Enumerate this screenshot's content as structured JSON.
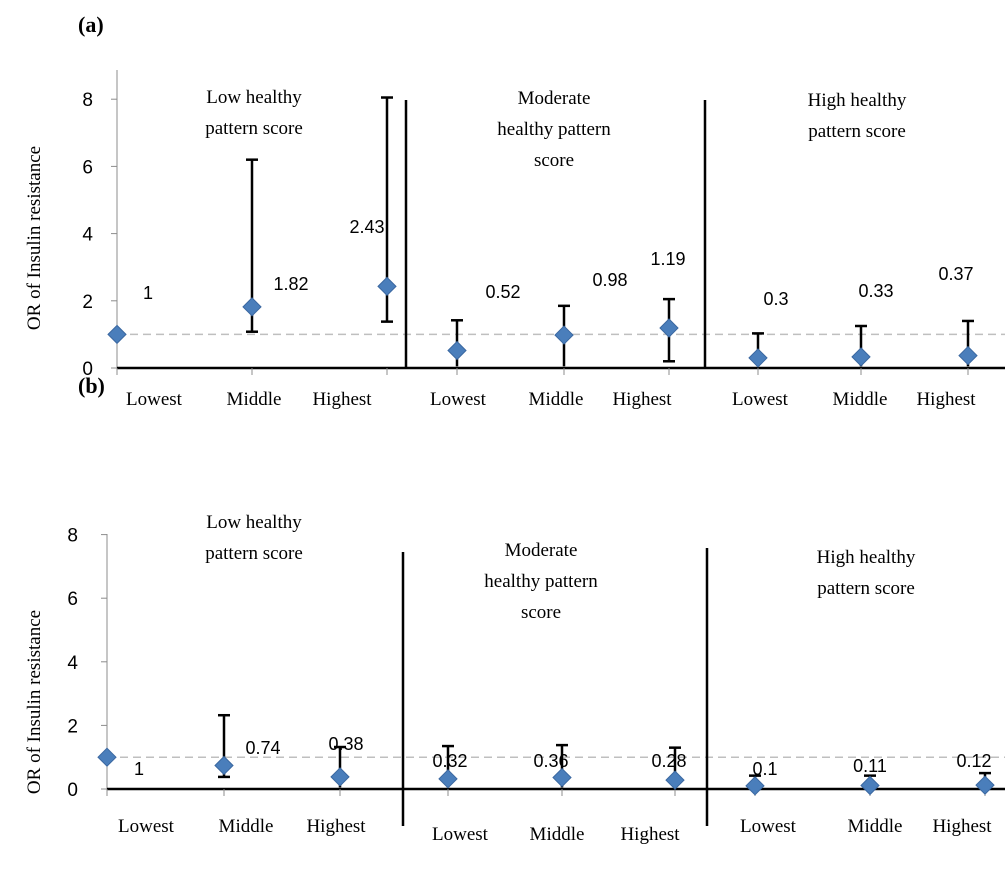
{
  "chart_data": [
    {
      "type": "scatter",
      "panel_label": "(a)",
      "ylabel": "OR of Insulin resistance",
      "ylim": [
        0,
        8
      ],
      "yticks": [
        "0",
        "2",
        "4",
        "6",
        "8"
      ],
      "reference_line": 1,
      "groups": [
        {
          "title_lines": [
            "Low healthy",
            "pattern score"
          ],
          "points": [
            {
              "x": "Lowest",
              "y": 1,
              "label": "1",
              "ci_low": 1,
              "ci_high": 1
            },
            {
              "x": "Middle",
              "y": 1.82,
              "label": "1.82",
              "ci_low": 1.08,
              "ci_high": 6.2
            },
            {
              "x": "Highest",
              "y": 2.43,
              "label": "2.43",
              "ci_low": 1.38,
              "ci_high": 8.05
            }
          ]
        },
        {
          "title_lines": [
            "Moderate",
            "healthy pattern",
            "score"
          ],
          "points": [
            {
              "x": "Lowest",
              "y": 0.52,
              "label": "0.52",
              "ci_low": 0.05,
              "ci_high": 1.42
            },
            {
              "x": "Middle",
              "y": 0.98,
              "label": "0.98",
              "ci_low": 0.05,
              "ci_high": 1.85
            },
            {
              "x": "Highest",
              "y": 1.19,
              "label": "1.19",
              "ci_low": 0.2,
              "ci_high": 2.05
            }
          ]
        },
        {
          "title_lines": [
            "High healthy",
            "pattern score"
          ],
          "points": [
            {
              "x": "Lowest",
              "y": 0.3,
              "label": "0.3",
              "ci_low": 0.05,
              "ci_high": 1.03
            },
            {
              "x": "Middle",
              "y": 0.33,
              "label": "0.33",
              "ci_low": 0.05,
              "ci_high": 1.25
            },
            {
              "x": "Highest",
              "y": 0.37,
              "label": "0.37",
              "ci_low": 0.05,
              "ci_high": 1.4
            }
          ]
        }
      ]
    },
    {
      "type": "scatter",
      "panel_label": "(b)",
      "ylabel": "OR of Insulin resistance",
      "ylim": [
        0,
        8
      ],
      "yticks": [
        "0",
        "2",
        "4",
        "6",
        "8"
      ],
      "reference_line": 1,
      "groups": [
        {
          "title_lines": [
            "Low healthy",
            "pattern score"
          ],
          "points": [
            {
              "x": "Lowest",
              "y": 1,
              "label": "1",
              "ci_low": 1,
              "ci_high": 1
            },
            {
              "x": "Middle",
              "y": 0.74,
              "label": "0.74",
              "ci_low": 0.38,
              "ci_high": 2.32
            },
            {
              "x": "Highest",
              "y": 0.38,
              "label": "0.38",
              "ci_low": 0.05,
              "ci_high": 1.32
            }
          ]
        },
        {
          "title_lines": [
            "Moderate",
            "healthy pattern",
            "score"
          ],
          "points": [
            {
              "x": "Lowest",
              "y": 0.32,
              "label": "0.32",
              "ci_low": 0.05,
              "ci_high": 1.35
            },
            {
              "x": "Middle",
              "y": 0.36,
              "label": "0.36",
              "ci_low": 0.05,
              "ci_high": 1.38
            },
            {
              "x": "Highest",
              "y": 0.28,
              "label": "0.28",
              "ci_low": 0.05,
              "ci_high": 1.3
            }
          ]
        },
        {
          "title_lines": [
            "High healthy",
            "pattern score"
          ],
          "points": [
            {
              "x": "Lowest",
              "y": 0.1,
              "label": "0.1",
              "ci_low": 0.05,
              "ci_high": 0.42
            },
            {
              "x": "Middle",
              "y": 0.11,
              "label": "0.11",
              "ci_low": 0.05,
              "ci_high": 0.42
            },
            {
              "x": "Highest",
              "y": 0.12,
              "label": "0.12",
              "ci_low": 0.05,
              "ci_high": 0.5
            }
          ]
        }
      ]
    }
  ],
  "colors": {
    "marker": "#4a7ebb",
    "marker_stroke": "#3a67a0",
    "reference": "#bfbfbf",
    "axis": "#000000",
    "tick": "#8c8c8c"
  }
}
